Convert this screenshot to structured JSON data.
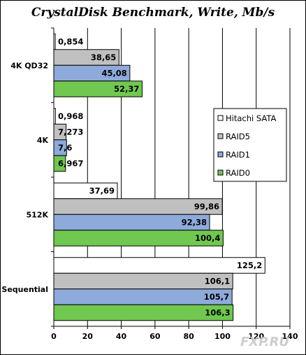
{
  "chart_data": {
    "type": "bar",
    "orientation": "horizontal",
    "title": "CrystalDisk Benchmark, Write, Mb/s",
    "categories": [
      "4K QD32",
      "4K",
      "512K",
      "Sequential"
    ],
    "series": [
      {
        "name": "Hitachi SATA",
        "color": "#ffffff",
        "values": [
          0.854,
          0.968,
          37.69,
          125.2
        ],
        "labels": [
          "0,854",
          "0,968",
          "37,69",
          "125,2"
        ]
      },
      {
        "name": "RAID5",
        "color": "#c0c0c0",
        "values": [
          38.65,
          7.273,
          99.86,
          106.1
        ],
        "labels": [
          "38,65",
          "7,273",
          "99,86",
          "106,1"
        ]
      },
      {
        "name": "RAID1",
        "color": "#8eaadb",
        "values": [
          45.08,
          7.6,
          92.38,
          105.7
        ],
        "labels": [
          "45,08",
          "7,6",
          "92,38",
          "105,7"
        ]
      },
      {
        "name": "RAID0",
        "color": "#70c850",
        "values": [
          52.37,
          6.967,
          100.4,
          106.3
        ],
        "labels": [
          "52,37",
          "6,967",
          "100,4",
          "106,3"
        ]
      }
    ],
    "xlim": [
      0,
      140
    ],
    "ticks": [
      0,
      20,
      40,
      60,
      80,
      100,
      120,
      140
    ],
    "grid": true,
    "legend_position": "right"
  },
  "watermark": "FXP.RU"
}
